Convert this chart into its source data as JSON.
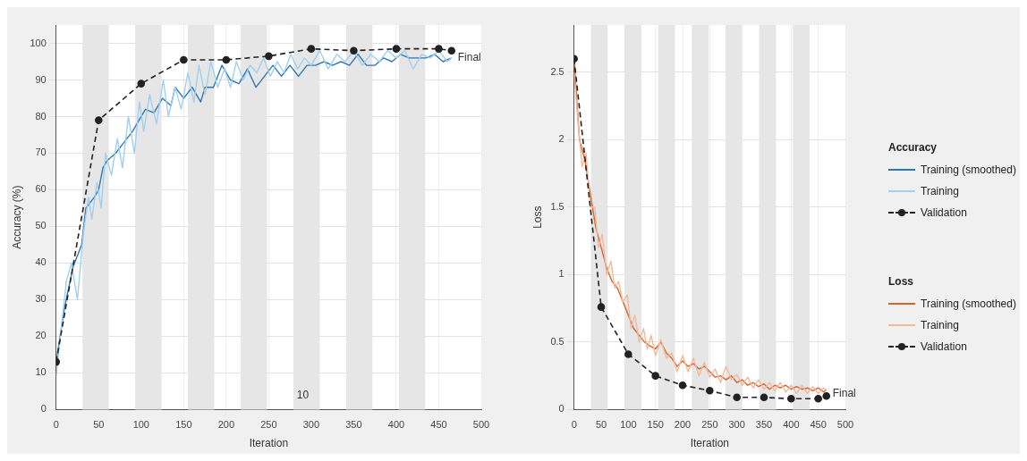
{
  "chart_data": [
    {
      "type": "line",
      "xlabel": "Iteration",
      "ylabel": "Accuracy (%)",
      "legend_title": "Accuracy",
      "xlim": [
        0,
        500
      ],
      "xticks": [
        0,
        50,
        100,
        150,
        200,
        250,
        300,
        350,
        400,
        450,
        500
      ],
      "ylim": [
        0,
        105
      ],
      "yticks": [
        0,
        10,
        20,
        30,
        40,
        50,
        60,
        70,
        80,
        90,
        100
      ],
      "grid": true,
      "legend": "right",
      "bands": [
        {
          "axis": "x",
          "from": 31,
          "to": 62,
          "color": "#e6e6e6"
        },
        {
          "axis": "x",
          "from": 93,
          "to": 124,
          "color": "#e6e6e6"
        },
        {
          "axis": "x",
          "from": 155,
          "to": 186,
          "color": "#e6e6e6"
        },
        {
          "axis": "x",
          "from": 217,
          "to": 248,
          "color": "#e6e6e6"
        },
        {
          "axis": "x",
          "from": 279,
          "to": 310,
          "color": "#e6e6e6"
        },
        {
          "axis": "x",
          "from": 341,
          "to": 372,
          "color": "#e6e6e6"
        },
        {
          "axis": "x",
          "from": 403,
          "to": 434,
          "color": "#e6e6e6"
        }
      ],
      "annotations": [
        {
          "text": "Final",
          "x": 465,
          "y": 96
        },
        "10"
      ],
      "series": [
        {
          "name": "Training (smoothed)",
          "color": "#2d77b6",
          "marker": "none",
          "line_style": "solid",
          "x": [
            0,
            10,
            20,
            30,
            35,
            45,
            50,
            55,
            60,
            70,
            80,
            90,
            100,
            105,
            115,
            125,
            135,
            140,
            150,
            160,
            170,
            175,
            185,
            195,
            205,
            215,
            225,
            235,
            245,
            255,
            265,
            275,
            285,
            295,
            305,
            315,
            325,
            335,
            345,
            355,
            365,
            375,
            385,
            395,
            405,
            415,
            425,
            435,
            445,
            455,
            465
          ],
          "values": [
            13,
            28,
            39,
            45,
            55,
            58,
            60,
            66,
            68,
            70,
            73,
            76,
            80,
            82,
            81,
            85,
            83,
            88,
            85,
            88,
            84,
            88,
            88,
            94,
            90,
            89,
            93,
            88,
            91,
            94,
            91,
            94,
            91,
            94,
            94,
            95,
            94,
            95,
            94,
            97,
            94,
            94,
            96,
            95,
            97,
            96,
            96,
            96,
            97,
            95,
            96
          ]
        },
        {
          "name": "Training",
          "color": "#9fd0f2",
          "marker": "none",
          "line_style": "solid",
          "x": [
            0,
            5,
            12,
            18,
            25,
            32,
            38,
            42,
            48,
            53,
            58,
            65,
            72,
            78,
            85,
            92,
            98,
            103,
            110,
            118,
            126,
            132,
            140,
            147,
            155,
            162,
            168,
            175,
            182,
            190,
            198,
            205,
            212,
            220,
            228,
            236,
            244,
            252,
            260,
            268,
            276,
            284,
            292,
            300,
            310,
            320,
            330,
            340,
            350,
            360,
            370,
            380,
            390,
            400,
            410,
            420,
            430,
            440,
            450,
            460,
            465
          ],
          "values": [
            9,
            20,
            35,
            40,
            30,
            48,
            58,
            52,
            62,
            55,
            70,
            64,
            74,
            66,
            80,
            70,
            84,
            76,
            86,
            78,
            90,
            80,
            88,
            82,
            92,
            84,
            94,
            86,
            95,
            88,
            93,
            88,
            95,
            90,
            94,
            92,
            96,
            91,
            95,
            92,
            97,
            93,
            96,
            94,
            98,
            93,
            97,
            95,
            98,
            94,
            97,
            95,
            98,
            96,
            98,
            93,
            97,
            96,
            98,
            95,
            96
          ]
        },
        {
          "name": "Validation",
          "color": "#222222",
          "marker": "circle",
          "line_style": "dashed",
          "x": [
            0,
            50,
            100,
            150,
            200,
            250,
            300,
            350,
            400,
            450,
            465
          ],
          "values": [
            13,
            79,
            89,
            95.5,
            95.5,
            96.5,
            98.5,
            98,
            98.5,
            98.5,
            98
          ]
        }
      ]
    },
    {
      "type": "line",
      "xlabel": "Iteration",
      "ylabel": "Loss",
      "legend_title": "Loss",
      "xlim": [
        0,
        500
      ],
      "xticks": [
        0,
        50,
        100,
        150,
        200,
        250,
        300,
        350,
        400,
        450,
        500
      ],
      "ylim": [
        0,
        2.85
      ],
      "yticks": [
        0,
        0.5,
        1,
        1.5,
        2,
        2.5
      ],
      "grid": true,
      "legend": "right",
      "bands": [
        {
          "axis": "x",
          "from": 31,
          "to": 62,
          "color": "#e6e6e6"
        },
        {
          "axis": "x",
          "from": 93,
          "to": 124,
          "color": "#e6e6e6"
        },
        {
          "axis": "x",
          "from": 155,
          "to": 186,
          "color": "#e6e6e6"
        },
        {
          "axis": "x",
          "from": 217,
          "to": 248,
          "color": "#e6e6e6"
        },
        {
          "axis": "x",
          "from": 279,
          "to": 310,
          "color": "#e6e6e6"
        },
        {
          "axis": "x",
          "from": 341,
          "to": 372,
          "color": "#e6e6e6"
        },
        {
          "axis": "x",
          "from": 403,
          "to": 434,
          "color": "#e6e6e6"
        }
      ],
      "annotations": [
        {
          "text": "Final",
          "x": 465,
          "y": 0.12
        }
      ],
      "series": [
        {
          "name": "Training (smoothed)",
          "color": "#d9622b",
          "marker": "none",
          "line_style": "solid",
          "x": [
            0,
            10,
            20,
            30,
            40,
            50,
            60,
            70,
            80,
            90,
            100,
            110,
            120,
            130,
            140,
            150,
            160,
            170,
            180,
            190,
            200,
            210,
            220,
            230,
            240,
            250,
            260,
            270,
            280,
            290,
            300,
            310,
            320,
            330,
            340,
            350,
            360,
            370,
            380,
            390,
            400,
            410,
            420,
            430,
            440,
            450,
            460,
            465
          ],
          "values": [
            2.6,
            2.0,
            1.85,
            1.6,
            1.35,
            1.2,
            1.05,
            0.95,
            0.9,
            0.8,
            0.7,
            0.6,
            0.55,
            0.5,
            0.47,
            0.45,
            0.5,
            0.42,
            0.38,
            0.32,
            0.36,
            0.32,
            0.34,
            0.3,
            0.32,
            0.28,
            0.24,
            0.25,
            0.22,
            0.25,
            0.2,
            0.22,
            0.18,
            0.2,
            0.17,
            0.19,
            0.15,
            0.18,
            0.16,
            0.18,
            0.15,
            0.17,
            0.15,
            0.16,
            0.14,
            0.16,
            0.13,
            0.15
          ]
        },
        {
          "name": "Training",
          "color": "#f5b99a",
          "marker": "none",
          "line_style": "solid",
          "x": [
            0,
            8,
            15,
            22,
            30,
            38,
            45,
            52,
            60,
            68,
            75,
            82,
            90,
            98,
            105,
            112,
            120,
            128,
            135,
            142,
            150,
            160,
            170,
            180,
            190,
            200,
            210,
            220,
            230,
            240,
            250,
            260,
            270,
            280,
            290,
            300,
            310,
            320,
            330,
            340,
            350,
            360,
            370,
            380,
            390,
            400,
            410,
            420,
            430,
            440,
            450,
            460,
            465
          ],
          "values": [
            2.5,
            2.1,
            1.8,
            1.9,
            1.5,
            1.5,
            1.2,
            1.3,
            1.0,
            1.1,
            0.9,
            0.95,
            0.8,
            0.85,
            0.6,
            0.7,
            0.5,
            0.6,
            0.45,
            0.55,
            0.4,
            0.52,
            0.38,
            0.42,
            0.28,
            0.4,
            0.28,
            0.38,
            0.25,
            0.35,
            0.24,
            0.3,
            0.2,
            0.32,
            0.22,
            0.26,
            0.18,
            0.24,
            0.16,
            0.22,
            0.15,
            0.2,
            0.14,
            0.2,
            0.13,
            0.18,
            0.12,
            0.18,
            0.12,
            0.17,
            0.12,
            0.16,
            0.14
          ]
        },
        {
          "name": "Validation",
          "color": "#222222",
          "marker": "circle",
          "line_style": "dashed",
          "x": [
            0,
            50,
            100,
            150,
            200,
            250,
            300,
            350,
            400,
            450,
            465
          ],
          "values": [
            2.6,
            0.76,
            0.41,
            0.25,
            0.18,
            0.14,
            0.09,
            0.09,
            0.08,
            0.08,
            0.1
          ]
        }
      ]
    }
  ]
}
